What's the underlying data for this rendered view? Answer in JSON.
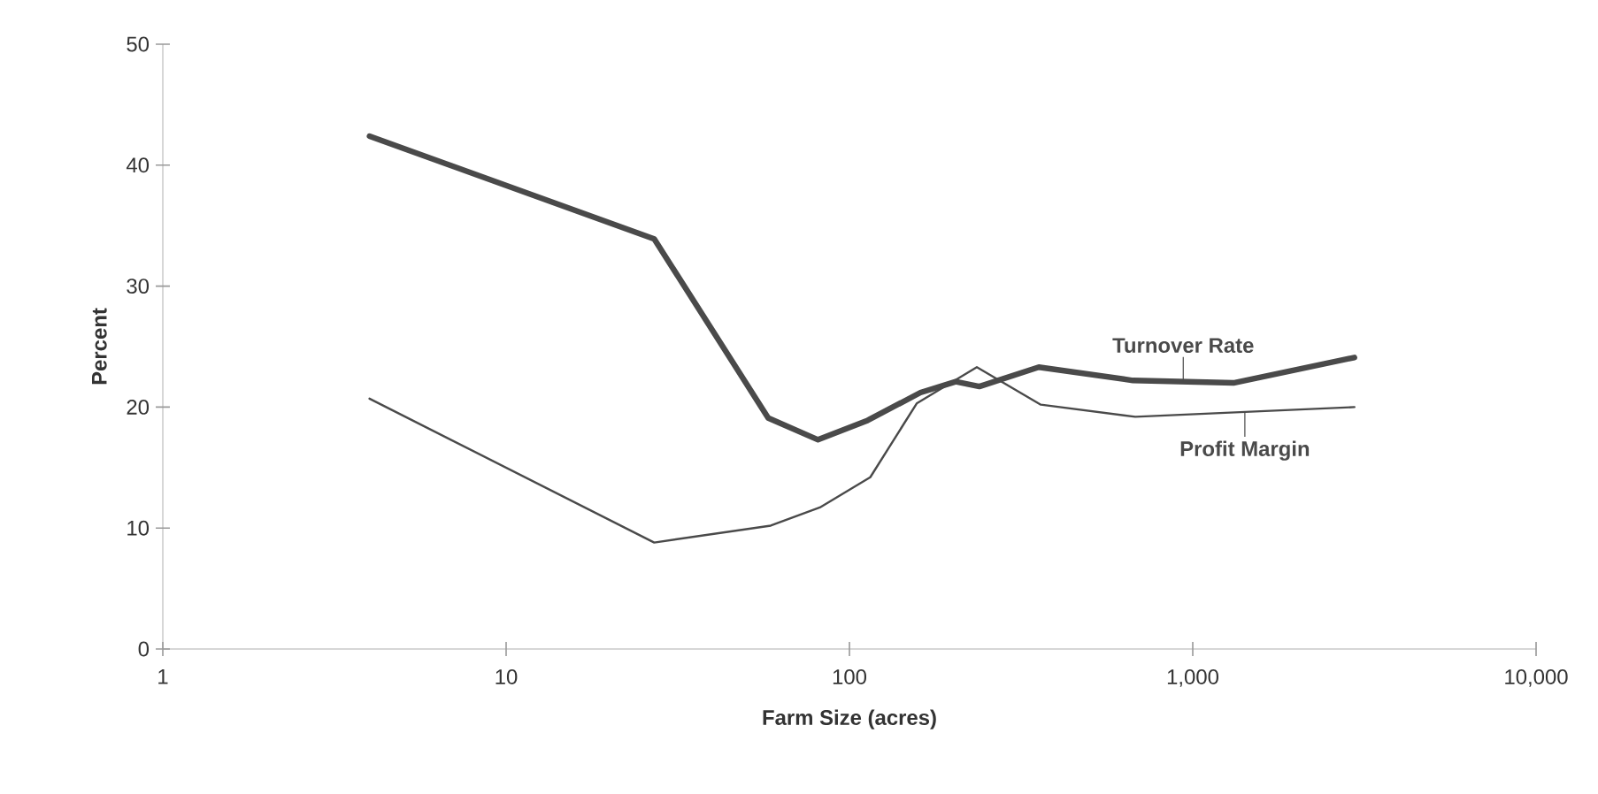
{
  "chart_data": {
    "type": "line",
    "xlabel": "Farm Size (acres)",
    "ylabel": "Percent",
    "log": "x",
    "xlim": [
      1,
      10000
    ],
    "ylim": [
      0,
      50
    ],
    "xticks": [
      1,
      10,
      100,
      {
        "value": 1000,
        "label": "1,000"
      },
      {
        "value": 10000,
        "label": "10,000"
      }
    ],
    "yticks": [
      0,
      10,
      20,
      30,
      40,
      50
    ],
    "series": [
      {
        "name": "Turnover Rate",
        "color": "#4a4a4a",
        "x": [
          4,
          27,
          58,
          81,
          113,
          161,
          204,
          239,
          356,
          670,
          1314,
          2958
        ],
        "values": [
          42.4,
          33.9,
          19.1,
          17.3,
          18.9,
          21.2,
          22.1,
          21.7,
          23.3,
          22.2,
          22.0,
          24.1
        ]
      },
      {
        "name": "Profit Margin",
        "color": "#4a4a4a",
        "x": [
          4,
          27,
          59,
          82,
          115,
          157,
          235,
          361,
          680,
          2958
        ],
        "values": [
          20.7,
          8.8,
          10.2,
          11.7,
          14.2,
          20.3,
          23.3,
          20.2,
          19.2,
          20.0
        ]
      }
    ]
  }
}
